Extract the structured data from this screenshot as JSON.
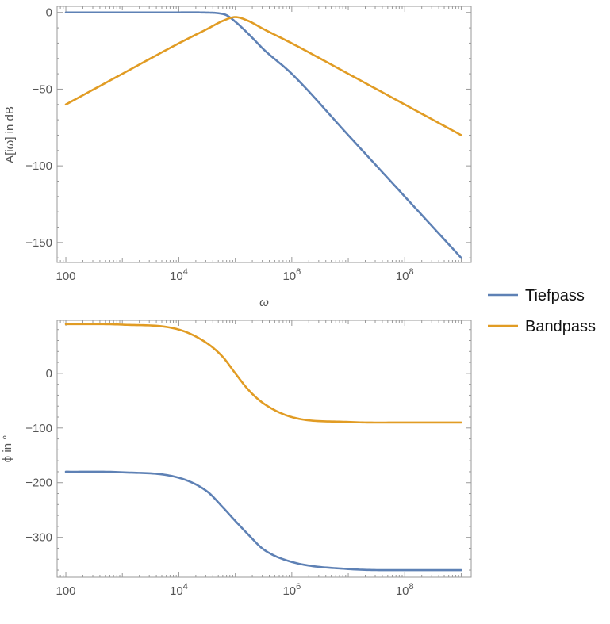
{
  "chart_data": [
    {
      "type": "line",
      "xscale": "log",
      "xlabel": "ω",
      "ylabel": "A[iω] in dB",
      "xlim": [
        70,
        1500000000
      ],
      "ylim": [
        -163,
        4
      ],
      "x_ticks": [
        {
          "value": 100,
          "label": "100"
        },
        {
          "value": 10000,
          "base": "10",
          "exp": "4"
        },
        {
          "value": 1000000,
          "base": "10",
          "exp": "6"
        },
        {
          "value": 100000000,
          "base": "10",
          "exp": "8"
        }
      ],
      "y_ticks": [
        {
          "value": 0,
          "label": "0"
        },
        {
          "value": -50,
          "label": "−50"
        },
        {
          "value": -100,
          "label": "−100"
        },
        {
          "value": -150,
          "label": "−150"
        }
      ],
      "series": [
        {
          "name": "Tiefpass",
          "color": "#5e81b5",
          "x": [
            100,
            1000,
            10000,
            31623,
            50000,
            70000,
            100000,
            141000,
            200000,
            316000,
            1000000,
            10000000,
            100000000,
            1000000000
          ],
          "y": [
            0,
            0,
            0,
            -0.1,
            -0.5,
            -1.8,
            -6.0,
            -11.0,
            -16.5,
            -24.0,
            -40.0,
            -80.0,
            -120.0,
            -160.0
          ]
        },
        {
          "name": "Bandpass",
          "color": "#e19c24",
          "x": [
            100,
            1000,
            10000,
            31623,
            60000,
            100000,
            170000,
            316000,
            1000000,
            10000000,
            100000000,
            1000000000
          ],
          "y": [
            -60.0,
            -40.0,
            -20.1,
            -10.8,
            -5.5,
            -3.0,
            -5.5,
            -10.8,
            -20.1,
            -40.0,
            -60.0,
            -80.0
          ]
        }
      ]
    },
    {
      "type": "line",
      "xscale": "log",
      "xlabel": "",
      "ylabel": "ϕ in °",
      "xlim": [
        70,
        1500000000
      ],
      "ylim": [
        -373,
        97
      ],
      "x_ticks": [
        {
          "value": 100,
          "label": "100"
        },
        {
          "value": 10000,
          "base": "10",
          "exp": "4"
        },
        {
          "value": 1000000,
          "base": "10",
          "exp": "6"
        },
        {
          "value": 100000000,
          "base": "10",
          "exp": "8"
        }
      ],
      "y_ticks": [
        {
          "value": 0,
          "label": "0"
        },
        {
          "value": -100,
          "label": "−100"
        },
        {
          "value": -200,
          "label": "−200"
        },
        {
          "value": -300,
          "label": "−300"
        }
      ],
      "series": [
        {
          "name": "Tiefpass",
          "color": "#5e81b5",
          "x": [
            100,
            1000,
            10000,
            31623,
            60000,
            100000,
            170000,
            316000,
            1000000,
            10000000,
            100000000,
            1000000000
          ],
          "y": [
            -180,
            -181,
            -191,
            -216,
            -245,
            -270,
            -295,
            -322,
            -345,
            -358,
            -360,
            -360
          ]
        },
        {
          "name": "Bandpass",
          "color": "#e19c24",
          "x": [
            100,
            1000,
            10000,
            31623,
            60000,
            100000,
            170000,
            316000,
            1000000,
            10000000,
            100000000,
            1000000000
          ],
          "y": [
            90,
            89,
            80,
            55,
            30,
            0,
            -30,
            -55,
            -80,
            -89,
            -90,
            -90
          ]
        }
      ]
    }
  ],
  "legend": [
    {
      "label": "Tiefpass",
      "color": "#5e81b5"
    },
    {
      "label": "Bandpass",
      "color": "#e19c24"
    }
  ]
}
